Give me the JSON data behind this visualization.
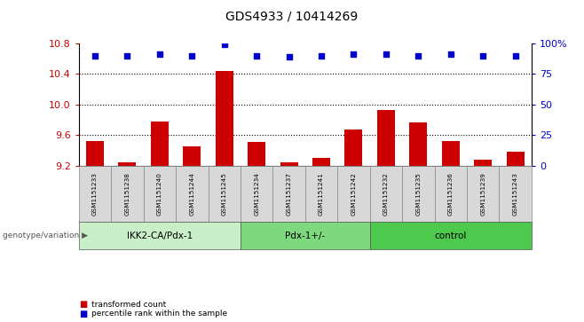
{
  "title": "GDS4933 / 10414269",
  "samples": [
    "GSM1151233",
    "GSM1151238",
    "GSM1151240",
    "GSM1151244",
    "GSM1151245",
    "GSM1151234",
    "GSM1151237",
    "GSM1151241",
    "GSM1151242",
    "GSM1151232",
    "GSM1151235",
    "GSM1151236",
    "GSM1151239",
    "GSM1151243"
  ],
  "bar_values": [
    9.52,
    9.25,
    9.78,
    9.45,
    10.44,
    9.51,
    9.24,
    9.3,
    9.68,
    9.93,
    9.77,
    9.52,
    9.28,
    9.38
  ],
  "percentile_ranks": [
    90,
    90,
    91,
    90,
    99,
    90,
    89,
    90,
    91,
    91,
    90,
    91,
    90,
    90
  ],
  "groups": [
    {
      "label": "IKK2-CA/Pdx-1",
      "start": 0,
      "end": 5,
      "color": "#c8efc8"
    },
    {
      "label": "Pdx-1+/-",
      "start": 5,
      "end": 9,
      "color": "#7ed87e"
    },
    {
      "label": "control",
      "start": 9,
      "end": 14,
      "color": "#4dc94d"
    }
  ],
  "ylim_left": [
    9.2,
    10.8
  ],
  "ylim_right": [
    0,
    100
  ],
  "yticks_left": [
    9.2,
    9.6,
    10.0,
    10.4,
    10.8
  ],
  "yticks_right": [
    0,
    25,
    50,
    75,
    100
  ],
  "bar_color": "#cc0000",
  "dot_color": "#0000cc",
  "bar_base": 9.2,
  "legend_bar_label": "transformed count",
  "legend_dot_label": "percentile rank within the sample",
  "xlabel_left": "genotype/variation",
  "bg_color": "#d8d8d8",
  "plot_bg": "#ffffff",
  "tick_color_left": "#cc0000",
  "tick_color_right": "#0000cc"
}
